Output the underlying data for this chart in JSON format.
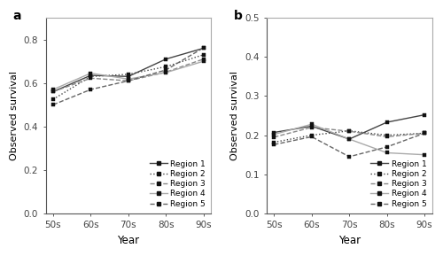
{
  "x_labels": [
    "50s",
    "60s",
    "70s",
    "80s",
    "90s"
  ],
  "panel_a": {
    "title": "a",
    "ylabel": "Observed survival",
    "xlabel": "Year",
    "ylim": [
      0.0,
      0.9
    ],
    "yticks": [
      0.0,
      0.2,
      0.4,
      0.6,
      0.8
    ],
    "regions": [
      {
        "name": "Region 1",
        "values": [
          0.56,
          0.635,
          0.63,
          0.71,
          0.76
        ],
        "color": "#444444",
        "linestyle": "solid"
      },
      {
        "name": "Region 2",
        "values": [
          0.525,
          0.63,
          0.64,
          0.675,
          0.73
        ],
        "color": "#444444",
        "linestyle": "dotted"
      },
      {
        "name": "Region 3",
        "values": [
          0.56,
          0.622,
          0.61,
          0.65,
          0.71
        ],
        "color": "#888888",
        "linestyle": "dashed"
      },
      {
        "name": "Region 4",
        "values": [
          0.57,
          0.645,
          0.618,
          0.648,
          0.7
        ],
        "color": "#aaaaaa",
        "linestyle": "solid"
      },
      {
        "name": "Region 5",
        "values": [
          0.5,
          0.57,
          0.61,
          0.66,
          0.762
        ],
        "color": "#666666",
        "linestyle": "dashed"
      }
    ]
  },
  "panel_b": {
    "title": "b",
    "ylabel": "Observed survival",
    "xlabel": "Year",
    "ylim": [
      0.0,
      0.5
    ],
    "yticks": [
      0.0,
      0.1,
      0.2,
      0.3,
      0.4,
      0.5
    ],
    "regions": [
      {
        "name": "Region 1",
        "values": [
          0.207,
          0.223,
          0.19,
          0.233,
          0.252
        ],
        "color": "#444444",
        "linestyle": "solid"
      },
      {
        "name": "Region 2",
        "values": [
          0.182,
          0.2,
          0.211,
          0.2,
          0.205
        ],
        "color": "#444444",
        "linestyle": "dotted"
      },
      {
        "name": "Region 3",
        "values": [
          0.195,
          0.22,
          0.21,
          0.196,
          0.205
        ],
        "color": "#888888",
        "linestyle": "dashed"
      },
      {
        "name": "Region 4",
        "values": [
          0.202,
          0.228,
          0.19,
          0.155,
          0.15
        ],
        "color": "#aaaaaa",
        "linestyle": "solid"
      },
      {
        "name": "Region 5",
        "values": [
          0.176,
          0.196,
          0.145,
          0.17,
          0.205
        ],
        "color": "#666666",
        "linestyle": "dashed"
      }
    ]
  },
  "linewidth": 1.0,
  "marker": "s",
  "markersize": 3.0,
  "marker_color": "#111111",
  "legend_labels": [
    "Region 1",
    "Region 2",
    "Region 3",
    "Region 4",
    "Region 5"
  ],
  "legend_colors": [
    "#444444",
    "#444444",
    "#888888",
    "#aaaaaa",
    "#666666"
  ],
  "legend_linestyles": [
    "solid",
    "dotted",
    "dashed",
    "solid",
    "dashed"
  ]
}
